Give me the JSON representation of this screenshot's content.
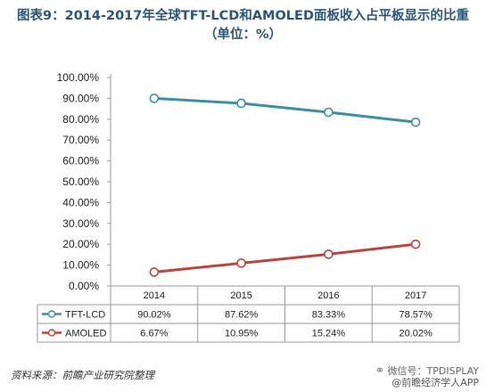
{
  "title": {
    "line1": "图表9：2014-2017年全球TFT-LCD和AMOLED面板收入占平板显示的比重",
    "line2": "（单位：%）"
  },
  "chart_data": {
    "type": "line",
    "categories": [
      "2014",
      "2015",
      "2016",
      "2017"
    ],
    "series": [
      {
        "name": "TFT-LCD",
        "values": [
          90.02,
          87.62,
          83.33,
          78.57
        ],
        "labels": [
          "90.02%",
          "87.62%",
          "83.33%",
          "78.57%"
        ],
        "color": "#3d8fa3"
      },
      {
        "name": "AMOLED",
        "values": [
          6.67,
          10.95,
          15.24,
          20.02
        ],
        "labels": [
          "6.67%",
          "10.95%",
          "15.24%",
          "20.02%"
        ],
        "color": "#b9463e"
      }
    ],
    "yticks": [
      "0.00%",
      "10.00%",
      "20.00%",
      "30.00%",
      "40.00%",
      "50.00%",
      "60.00%",
      "70.00%",
      "80.00%",
      "90.00%",
      "100.00%"
    ],
    "ylim": [
      0,
      100
    ],
    "grid": false,
    "legend": "table-rows"
  },
  "footer": {
    "source": "资料来源：前瞻产业研究院整理",
    "wechat": "微信号：TPDISPLAY",
    "app": "@前瞻经济学人APP"
  }
}
